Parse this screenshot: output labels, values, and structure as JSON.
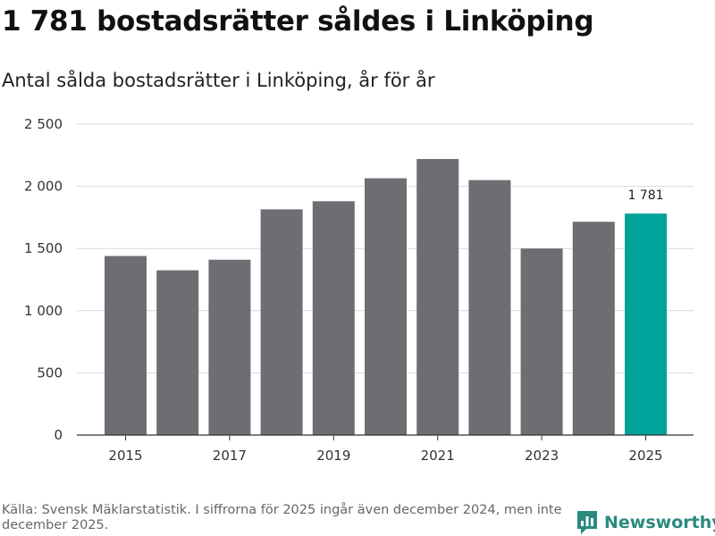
{
  "header": {
    "title": "1 781 bostadsrätter såldes i Linköping",
    "subtitle": "Antal sålda bostadsrätter i Linköping, år för år"
  },
  "chart_data": {
    "type": "bar",
    "categories": [
      "2015",
      "2016",
      "2017",
      "2018",
      "2019",
      "2020",
      "2021",
      "2022",
      "2023",
      "2024",
      "2025"
    ],
    "x_tick_labels": [
      "2015",
      "2017",
      "2019",
      "2021",
      "2023",
      "2025"
    ],
    "values": [
      1440,
      1325,
      1410,
      1815,
      1880,
      2065,
      2220,
      2050,
      1500,
      1715,
      1781
    ],
    "ylim": [
      0,
      2500
    ],
    "y_ticks": [
      0,
      500,
      1000,
      1500,
      2000,
      2500
    ],
    "y_tick_labels": [
      "0",
      "500",
      "1 000",
      "1 500",
      "2 000",
      "2 500"
    ],
    "highlight_index": 10,
    "highlight_label": "1 781",
    "grid": true,
    "colors": {
      "bar": "#6e6d73",
      "highlight": "#00a39a",
      "grid": "#d9d9d9",
      "axis": "#333333"
    }
  },
  "footer": {
    "source": "Källa: Svensk Mäklarstatistik. I siffrorna för 2025 ingår även december 2024, men inte december 2025.",
    "brand_name": "Newsworthy",
    "brand_icon": "newsworthy-logo-icon",
    "brand_color": "#2a8a7f"
  }
}
